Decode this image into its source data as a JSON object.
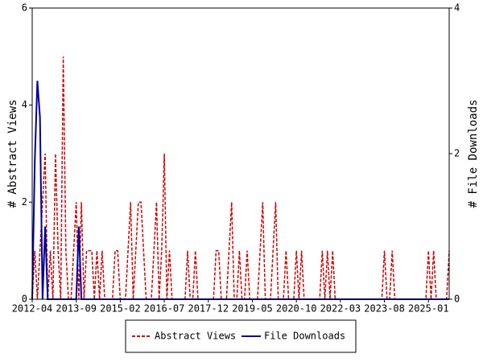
{
  "chart_data": {
    "type": "line",
    "y_label": "# Abstract Views",
    "y2_label": "# File Downloads",
    "categories": [
      "2012-04",
      null,
      null,
      null,
      null,
      null,
      null,
      null,
      null,
      null,
      null,
      null,
      null,
      null,
      null,
      null,
      null,
      "2013-09",
      null,
      null,
      null,
      null,
      null,
      null,
      null,
      null,
      null,
      null,
      null,
      null,
      null,
      null,
      null,
      null,
      "2015-02",
      null,
      null,
      null,
      null,
      null,
      null,
      null,
      null,
      null,
      null,
      null,
      null,
      null,
      null,
      null,
      null,
      "2016-07",
      null,
      null,
      null,
      null,
      null,
      null,
      null,
      null,
      null,
      null,
      null,
      null,
      null,
      null,
      null,
      null,
      "2017-12",
      null,
      null,
      null,
      null,
      null,
      null,
      null,
      null,
      null,
      null,
      null,
      null,
      null,
      null,
      null,
      null,
      "2019-05",
      null,
      null,
      null,
      null,
      null,
      null,
      null,
      null,
      null,
      null,
      null,
      null,
      null,
      null,
      null,
      null,
      "2020-10",
      null,
      null,
      null,
      null,
      null,
      null,
      null,
      null,
      null,
      null,
      null,
      null,
      null,
      null,
      null,
      null,
      "2022-03",
      null,
      null,
      null,
      null,
      null,
      null,
      null,
      null,
      null,
      null,
      null,
      null,
      null,
      null,
      null,
      null,
      "2023-08",
      null,
      null,
      null,
      null,
      null,
      null,
      null,
      null,
      null,
      null,
      null,
      null,
      null,
      null,
      null,
      null,
      "2025-01",
      null,
      null,
      null,
      null,
      null,
      null,
      null,
      null
    ],
    "series": [
      {
        "name": "Abstract Views",
        "color": "#cc0000",
        "dash": true,
        "values": [
          0,
          1,
          0,
          1,
          2,
          3,
          0,
          1,
          0,
          3,
          1,
          0,
          5,
          1,
          0,
          0,
          1,
          2,
          0,
          2,
          0,
          1,
          1,
          1,
          0,
          1,
          0,
          1,
          0,
          0,
          0,
          0,
          1,
          1,
          0,
          0,
          0,
          1,
          2,
          0,
          1,
          2,
          2,
          1,
          0,
          0,
          0,
          1,
          2,
          0,
          1,
          3,
          0,
          1,
          0,
          0,
          0,
          0,
          0,
          0,
          1,
          0,
          0,
          1,
          0,
          0,
          0,
          0,
          0,
          0,
          0,
          1,
          1,
          0,
          0,
          0,
          1,
          2,
          0,
          0,
          1,
          0,
          0,
          1,
          0,
          0,
          0,
          0,
          1,
          2,
          0,
          0,
          0,
          1,
          2,
          0,
          0,
          0,
          1,
          0,
          0,
          0,
          1,
          0,
          1,
          0,
          0,
          0,
          0,
          0,
          0,
          0,
          1,
          0,
          1,
          0,
          1,
          0,
          0,
          0,
          0,
          0,
          0,
          0,
          0,
          0,
          0,
          0,
          0,
          0,
          0,
          0,
          0,
          0,
          0,
          0,
          1,
          0,
          0,
          1,
          0,
          0,
          0,
          0,
          0,
          0,
          0,
          0,
          0,
          0,
          0,
          0,
          0,
          1,
          0,
          1,
          0,
          0,
          0,
          0,
          0,
          1
        ]
      },
      {
        "name": "File Downloads",
        "color": "#000099",
        "dash": false,
        "axis": "y2",
        "values": [
          0,
          1.9,
          3,
          2.5,
          0,
          1,
          0,
          0,
          0,
          0,
          0,
          0,
          0,
          0,
          0,
          0,
          0,
          0,
          1,
          0,
          0,
          0,
          0,
          0,
          0,
          0,
          0,
          0,
          0,
          0,
          0,
          0,
          0,
          0,
          0,
          0,
          0,
          0,
          0,
          0,
          0,
          0,
          0,
          0,
          0,
          0,
          0,
          0,
          0,
          0,
          0,
          0,
          0,
          0,
          0,
          0,
          0,
          0,
          0,
          0,
          0,
          0,
          0,
          0,
          0,
          0,
          0,
          0,
          0,
          0,
          0,
          0,
          0,
          0,
          0,
          0,
          0,
          0,
          0,
          0,
          0,
          0,
          0,
          0,
          0,
          0,
          0,
          0,
          0,
          0,
          0,
          0,
          0,
          0,
          0,
          0,
          0,
          0,
          0,
          0,
          0,
          0,
          0,
          0,
          0,
          0,
          0,
          0,
          0,
          0,
          0,
          0,
          0,
          0,
          0,
          0,
          0,
          0,
          0,
          0,
          0,
          0,
          0,
          0,
          0,
          0,
          0,
          0,
          0,
          0,
          0,
          0,
          0,
          0,
          0,
          0,
          0,
          0,
          0,
          0,
          0,
          0,
          0,
          0,
          0,
          0,
          0,
          0,
          0,
          0,
          0,
          0,
          0,
          0,
          0,
          0,
          0,
          0,
          0,
          0,
          0,
          0
        ]
      }
    ],
    "ylim": [
      0,
      6
    ],
    "yticks": [
      0,
      2,
      4,
      6
    ],
    "y2lim": [
      0,
      4
    ],
    "y2ticks": [
      0,
      2,
      4
    ]
  }
}
